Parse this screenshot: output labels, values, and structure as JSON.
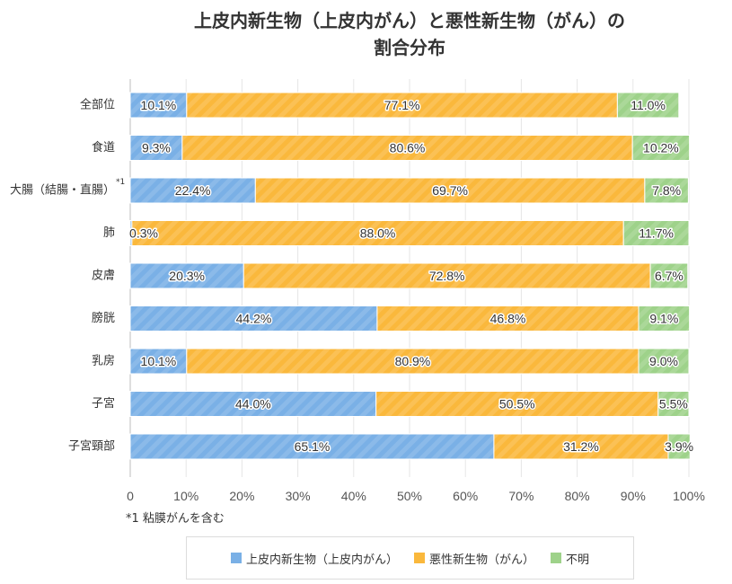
{
  "chart_data": {
    "type": "bar",
    "orientation": "horizontal",
    "stacked": true,
    "title": "上皮内新生物（上皮内がん）と悪性新生物（がん）の\n割合分布",
    "categories": [
      "全部位",
      "食道",
      "大腸（結腸・直腸）",
      "肺",
      "皮膚",
      "膀胱",
      "乳房",
      "子宮",
      "子宮頸部"
    ],
    "category_notes": [
      "",
      "",
      "*1",
      "",
      "",
      "",
      "",
      "",
      ""
    ],
    "series": [
      {
        "name": "上皮内新生物（上皮内がん）",
        "color": "#7ab0e6",
        "values": [
          10.1,
          9.3,
          22.4,
          0.3,
          20.3,
          44.2,
          10.1,
          44.0,
          65.1
        ]
      },
      {
        "name": "悪性新生物（がん）",
        "color": "#fab83c",
        "values": [
          77.1,
          80.6,
          69.7,
          88.0,
          72.8,
          46.8,
          80.9,
          50.5,
          31.2
        ]
      },
      {
        "name": "不明",
        "color": "#9ed28a",
        "values": [
          11.0,
          10.2,
          7.8,
          11.7,
          6.7,
          9.1,
          9.0,
          5.5,
          3.9
        ]
      }
    ],
    "unit": "%",
    "xticks": [
      "0",
      "10%",
      "20%",
      "30%",
      "40%",
      "50%",
      "60%",
      "70%",
      "80%",
      "90%",
      "100%"
    ],
    "xlim": [
      0,
      100
    ],
    "grid": true,
    "legend": "bottom",
    "footnote": "*1 粘膜がんを含む"
  }
}
